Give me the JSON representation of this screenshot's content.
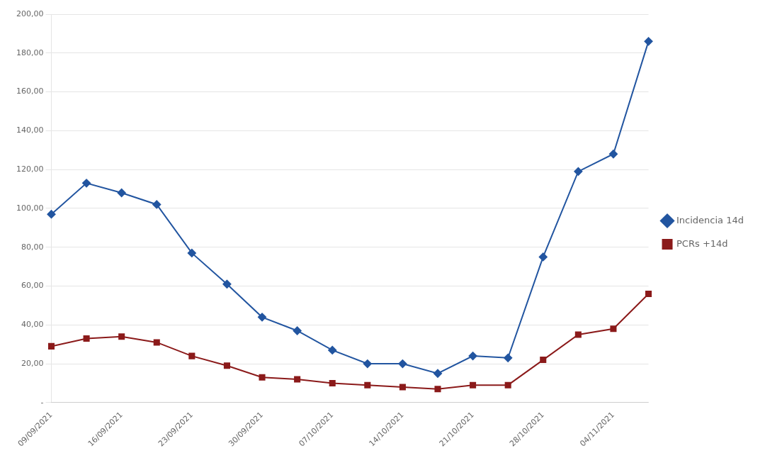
{
  "chart_data": {
    "type": "line",
    "categories": [
      "09/09/2021",
      null,
      "16/09/2021",
      null,
      "23/09/2021",
      null,
      "30/09/2021",
      null,
      "07/10/2021",
      null,
      "14/10/2021",
      null,
      "21/10/2021",
      null,
      "28/10/2021",
      null,
      "04/11/2021",
      null
    ],
    "series": [
      {
        "name": "Incidencia 14d",
        "color": "#2255A0",
        "marker": "diamond",
        "values": [
          97,
          113,
          108,
          102,
          77,
          61,
          44,
          37,
          27,
          20,
          20,
          15,
          24,
          23,
          75,
          119,
          128,
          186
        ]
      },
      {
        "name": "PCRs +14d",
        "color": "#8B1A1A",
        "marker": "square",
        "values": [
          29,
          33,
          34,
          31,
          24,
          19,
          13,
          12,
          10,
          9,
          8,
          7,
          9,
          9,
          22,
          35,
          38,
          56
        ]
      }
    ],
    "ylim": [
      0,
      200
    ],
    "yticks": [
      {
        "value": 0,
        "label": "-"
      },
      {
        "value": 20,
        "label": "20,00"
      },
      {
        "value": 40,
        "label": "40,00"
      },
      {
        "value": 60,
        "label": "60,00"
      },
      {
        "value": 80,
        "label": "80,00"
      },
      {
        "value": 100,
        "label": "100,00"
      },
      {
        "value": 120,
        "label": "120,00"
      },
      {
        "value": 140,
        "label": "140,00"
      },
      {
        "value": 160,
        "label": "160,00"
      },
      {
        "value": 180,
        "label": "180,00"
      },
      {
        "value": 200,
        "label": "200,00"
      }
    ],
    "grid": "y",
    "legend": "right"
  }
}
